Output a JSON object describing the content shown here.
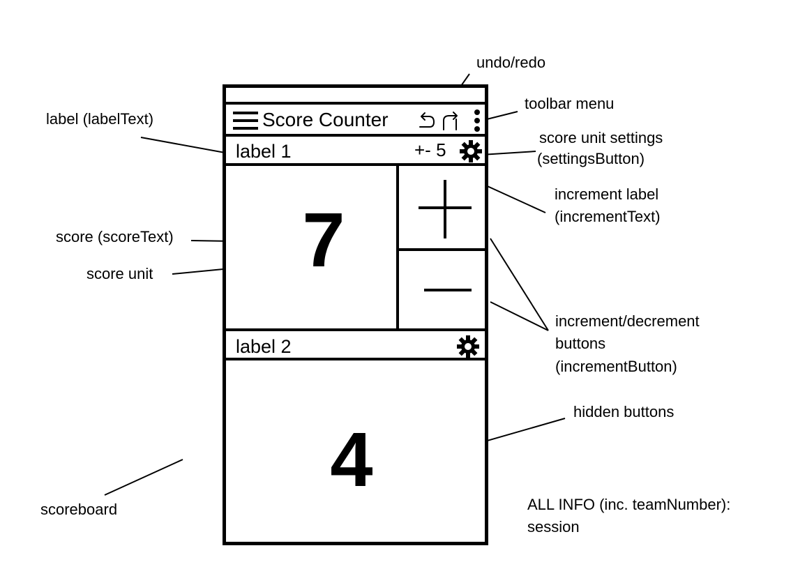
{
  "app": {
    "toolbar_title": "Score Counter"
  },
  "teams": [
    {
      "label": "label 1",
      "increment_text": "+- 5",
      "score": "7"
    },
    {
      "label": "label 2",
      "score": "4"
    }
  ],
  "annotations": {
    "undo_redo": "undo/redo",
    "toolbar_menu": "toolbar menu",
    "label": "label (labelText)",
    "score_unit_settings_1": "score unit settings",
    "score_unit_settings_2": "(settingsButton)",
    "increment_label_1": "increment label",
    "increment_label_2": "(incrementText)",
    "score": "score (scoreText)",
    "score_unit": "score unit",
    "increment_buttons_1": "increment/decrement",
    "increment_buttons_2": "buttons",
    "increment_buttons_3": "(incrementButton)",
    "hidden_buttons": "hidden buttons",
    "scoreboard": "scoreboard",
    "all_info_1": "ALL INFO (inc. teamNumber):",
    "all_info_2": "session"
  },
  "icons": [
    "menu-icon",
    "undo-icon",
    "redo-icon",
    "more-vert-icon",
    "gear-icon",
    "plus-icon",
    "minus-icon"
  ]
}
